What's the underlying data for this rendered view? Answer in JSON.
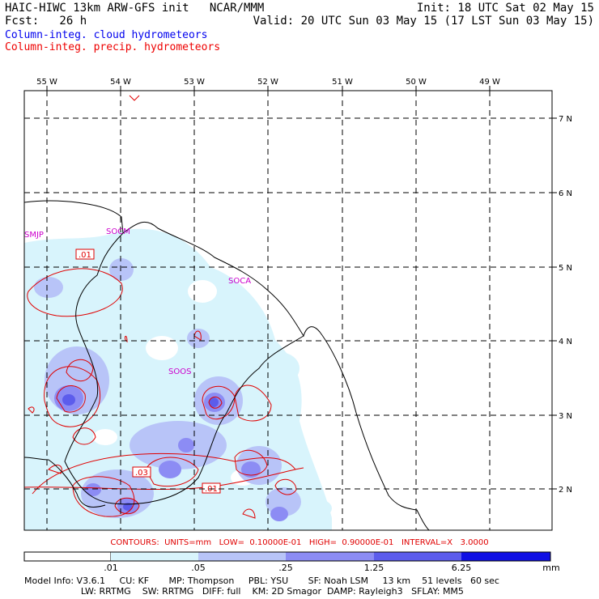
{
  "header": {
    "title": "HAIC-HIWC 13km ARW-GFS init   NCAR/MMM",
    "fcst": "Fcst:   26 h",
    "init": "Init: 18 UTC Sat 02 May 15",
    "valid": "Valid: 20 UTC Sun 03 May 15 (17 LST Sun 03 May 15)"
  },
  "legend": {
    "cloud": "Column-integ. cloud hydrometeors",
    "precip": "Column-integ. precip. hydrometeors",
    "cloud_color": "#0000ee",
    "precip_color": "#ee0000"
  },
  "map": {
    "lon_labels": [
      "55 W",
      "54 W",
      "53 W",
      "52 W",
      "51 W",
      "50 W",
      "49 W"
    ],
    "lat_labels": [
      "7 N",
      "6 N",
      "5 N",
      "4 N",
      "3 N",
      "2 N"
    ],
    "stations": [
      "SMJP",
      "SOCM",
      "SOCA",
      "SOOS"
    ],
    "station_color": "#cc00cc",
    "contour_labels": [
      ".01",
      ".03",
      ".01"
    ]
  },
  "contours_line": "CONTOURS:  UNITS=mm   LOW=  0.10000E-01   HIGH=  0.90000E-01   INTERVAL=X   3.0000",
  "colorbar": {
    "labels": [
      ".01",
      ".05",
      ".25",
      "1.25",
      "6.25"
    ],
    "units": "mm",
    "colors": [
      "#ffffff",
      "#d8f4fc",
      "#b8c4f8",
      "#8c8cf4",
      "#5c5cec",
      "#1010e4"
    ]
  },
  "model_info": {
    "line1": "Model Info: V3.6.1     CU: KF       MP: Thompson     PBL: YSU       SF: Noah LSM     13 km    51 levels   60 sec",
    "line2": "                    LW: RRTMG    SW: RRTMG   DIFF: full    KM: 2D Smagor  DAMP: Rayleigh3   SFLAY: MM5"
  }
}
